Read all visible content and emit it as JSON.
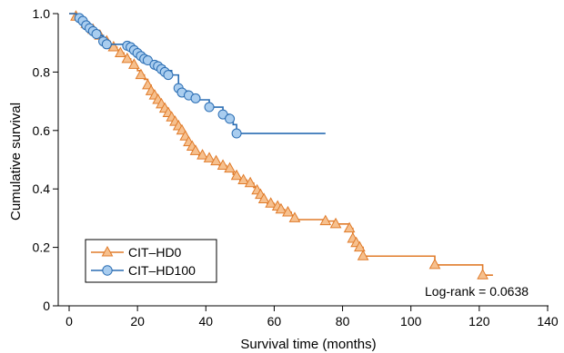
{
  "chart_data": {
    "type": "line",
    "subtype": "kaplan-meier step",
    "xlabel": "Survival time (months)",
    "ylabel": "Cumulative survival",
    "xlim": [
      0,
      140
    ],
    "ylim": [
      0,
      1
    ],
    "xticks": [
      0,
      20,
      40,
      60,
      80,
      100,
      120,
      140
    ],
    "yticks": [
      0,
      0.2,
      0.4,
      0.6,
      0.8,
      1.0
    ],
    "ytick_labels": [
      "0",
      "0.2",
      "0.4",
      "0.6",
      "0.8",
      "1.0"
    ],
    "grid": false,
    "legend_position": "bottom-left",
    "annotation": "Log-rank = 0.0638",
    "series": [
      {
        "name": "CIT–HD0",
        "color": "#e07b2a",
        "fill": "#f6c08e",
        "marker": "triangle",
        "start": 0,
        "steps": [
          [
            2,
            0.99
          ],
          [
            3,
            0.985
          ],
          [
            4,
            0.975
          ],
          [
            5,
            0.965
          ],
          [
            6,
            0.955
          ],
          [
            7,
            0.945
          ],
          [
            8,
            0.935
          ],
          [
            9,
            0.925
          ],
          [
            10,
            0.915
          ],
          [
            11,
            0.905
          ],
          [
            12,
            0.895
          ],
          [
            13,
            0.885
          ],
          [
            14,
            0.875
          ],
          [
            15,
            0.865
          ],
          [
            16,
            0.855
          ],
          [
            17,
            0.845
          ],
          [
            18,
            0.835
          ],
          [
            19,
            0.82
          ],
          [
            20,
            0.805
          ],
          [
            21,
            0.79
          ],
          [
            22,
            0.775
          ],
          [
            23,
            0.755
          ],
          [
            24,
            0.735
          ],
          [
            25,
            0.715
          ],
          [
            26,
            0.7
          ],
          [
            27,
            0.685
          ],
          [
            28,
            0.67
          ],
          [
            29,
            0.655
          ],
          [
            30,
            0.64
          ],
          [
            31,
            0.625
          ],
          [
            32,
            0.61
          ],
          [
            33,
            0.595
          ],
          [
            34,
            0.575
          ],
          [
            35,
            0.555
          ],
          [
            36,
            0.54
          ],
          [
            37,
            0.525
          ],
          [
            38,
            0.51
          ],
          [
            40,
            0.5
          ],
          [
            42,
            0.49
          ],
          [
            44,
            0.48
          ],
          [
            46,
            0.465
          ],
          [
            48,
            0.45
          ],
          [
            49,
            0.44
          ],
          [
            50,
            0.43
          ],
          [
            52,
            0.42
          ],
          [
            54,
            0.405
          ],
          [
            55,
            0.39
          ],
          [
            56,
            0.375
          ],
          [
            57,
            0.36
          ],
          [
            58,
            0.35
          ],
          [
            60,
            0.34
          ],
          [
            62,
            0.33
          ],
          [
            63,
            0.32
          ],
          [
            65,
            0.31
          ],
          [
            66,
            0.295
          ],
          [
            75,
            0.29
          ],
          [
            78,
            0.28
          ],
          [
            82,
            0.265
          ],
          [
            83,
            0.22
          ],
          [
            84,
            0.215
          ],
          [
            85,
            0.2
          ],
          [
            86,
            0.17
          ],
          [
            107,
            0.14
          ],
          [
            121,
            0.105
          ]
        ],
        "end": 124,
        "markers": [
          [
            2,
            0.99
          ],
          [
            5,
            0.965
          ],
          [
            7,
            0.945
          ],
          [
            9,
            0.925
          ],
          [
            11,
            0.905
          ],
          [
            13,
            0.885
          ],
          [
            15,
            0.865
          ],
          [
            17,
            0.845
          ],
          [
            19,
            0.825
          ],
          [
            21,
            0.79
          ],
          [
            23,
            0.755
          ],
          [
            24,
            0.735
          ],
          [
            25,
            0.72
          ],
          [
            26,
            0.705
          ],
          [
            27,
            0.69
          ],
          [
            28,
            0.675
          ],
          [
            29,
            0.66
          ],
          [
            30,
            0.645
          ],
          [
            31,
            0.63
          ],
          [
            32,
            0.615
          ],
          [
            33,
            0.6
          ],
          [
            34,
            0.58
          ],
          [
            35,
            0.56
          ],
          [
            36,
            0.545
          ],
          [
            37,
            0.53
          ],
          [
            39,
            0.515
          ],
          [
            41,
            0.505
          ],
          [
            43,
            0.495
          ],
          [
            45,
            0.48
          ],
          [
            47,
            0.47
          ],
          [
            49,
            0.445
          ],
          [
            51,
            0.43
          ],
          [
            53,
            0.42
          ],
          [
            55,
            0.395
          ],
          [
            56,
            0.38
          ],
          [
            57,
            0.365
          ],
          [
            59,
            0.35
          ],
          [
            61,
            0.34
          ],
          [
            62,
            0.33
          ],
          [
            64,
            0.32
          ],
          [
            66,
            0.3
          ],
          [
            75,
            0.29
          ],
          [
            78,
            0.28
          ],
          [
            82,
            0.265
          ],
          [
            83,
            0.23
          ],
          [
            84,
            0.215
          ],
          [
            85,
            0.2
          ],
          [
            86,
            0.17
          ],
          [
            107,
            0.14
          ],
          [
            121,
            0.105
          ]
        ]
      },
      {
        "name": "CIT–HD100",
        "color": "#2a6db3",
        "fill": "#a9cdef",
        "marker": "circle",
        "start": 0,
        "steps": [
          [
            2,
            0.99
          ],
          [
            3,
            0.985
          ],
          [
            4,
            0.97
          ],
          [
            5,
            0.955
          ],
          [
            6,
            0.945
          ],
          [
            7,
            0.935
          ],
          [
            8,
            0.925
          ],
          [
            10,
            0.905
          ],
          [
            11,
            0.895
          ],
          [
            17,
            0.89
          ],
          [
            19,
            0.875
          ],
          [
            20,
            0.86
          ],
          [
            22,
            0.845
          ],
          [
            24,
            0.835
          ],
          [
            26,
            0.82
          ],
          [
            28,
            0.805
          ],
          [
            30,
            0.79
          ],
          [
            32,
            0.745
          ],
          [
            33,
            0.735
          ],
          [
            35,
            0.72
          ],
          [
            37,
            0.705
          ],
          [
            41,
            0.68
          ],
          [
            45,
            0.655
          ],
          [
            47,
            0.64
          ],
          [
            48,
            0.62
          ],
          [
            49,
            0.59
          ]
        ],
        "end": 75,
        "markers": [
          [
            3,
            0.985
          ],
          [
            4,
            0.975
          ],
          [
            5,
            0.96
          ],
          [
            6,
            0.95
          ],
          [
            7,
            0.94
          ],
          [
            8,
            0.93
          ],
          [
            10,
            0.905
          ],
          [
            11,
            0.895
          ],
          [
            17,
            0.89
          ],
          [
            18,
            0.885
          ],
          [
            19,
            0.875
          ],
          [
            20,
            0.865
          ],
          [
            21,
            0.855
          ],
          [
            22,
            0.845
          ],
          [
            23,
            0.84
          ],
          [
            25,
            0.825
          ],
          [
            26,
            0.82
          ],
          [
            27,
            0.81
          ],
          [
            28,
            0.8
          ],
          [
            29,
            0.79
          ],
          [
            32,
            0.745
          ],
          [
            33,
            0.73
          ],
          [
            35,
            0.72
          ],
          [
            37,
            0.71
          ],
          [
            41,
            0.68
          ],
          [
            45,
            0.655
          ],
          [
            47,
            0.64
          ],
          [
            49,
            0.59
          ]
        ]
      }
    ]
  }
}
